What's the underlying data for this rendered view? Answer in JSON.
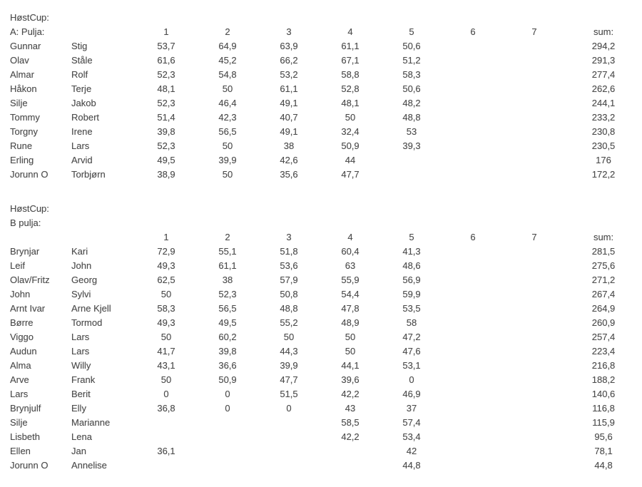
{
  "page": {
    "background": "#ffffff",
    "text_color": "#4c4c4c"
  },
  "sections": [
    {
      "title": "HøstCup:",
      "subtitle": "A: Pulja:",
      "subtitle_inline_with_header": true,
      "round_columns": [
        "1",
        "2",
        "3",
        "4",
        "5",
        "6",
        "7"
      ],
      "sum_label": "sum:",
      "rows": [
        {
          "name": "Gunnar",
          "partner": "Stig",
          "rounds": [
            "53,7",
            "64,9",
            "63,9",
            "61,1",
            "50,6",
            "",
            ""
          ],
          "sum": "294,2"
        },
        {
          "name": "Olav",
          "partner": "Ståle",
          "rounds": [
            "61,6",
            "45,2",
            "66,2",
            "67,1",
            "51,2",
            "",
            ""
          ],
          "sum": "291,3"
        },
        {
          "name": "Almar",
          "partner": "Rolf",
          "rounds": [
            "52,3",
            "54,8",
            "53,2",
            "58,8",
            "58,3",
            "",
            ""
          ],
          "sum": "277,4"
        },
        {
          "name": "Håkon",
          "partner": "Terje",
          "rounds": [
            "48,1",
            "50",
            "61,1",
            "52,8",
            "50,6",
            "",
            ""
          ],
          "sum": "262,6"
        },
        {
          "name": "Silje",
          "partner": "Jakob",
          "rounds": [
            "52,3",
            "46,4",
            "49,1",
            "48,1",
            "48,2",
            "",
            ""
          ],
          "sum": "244,1"
        },
        {
          "name": "Tommy",
          "partner": "Robert",
          "rounds": [
            "51,4",
            "42,3",
            "40,7",
            "50",
            "48,8",
            "",
            ""
          ],
          "sum": "233,2"
        },
        {
          "name": "Torgny",
          "partner": "Irene",
          "rounds": [
            "39,8",
            "56,5",
            "49,1",
            "32,4",
            "53",
            "",
            ""
          ],
          "sum": "230,8"
        },
        {
          "name": "Rune",
          "partner": "Lars",
          "rounds": [
            "52,3",
            "50",
            "38",
            "50,9",
            "39,3",
            "",
            ""
          ],
          "sum": "230,5"
        },
        {
          "name": "Erling",
          "partner": "Arvid",
          "rounds": [
            "49,5",
            "39,9",
            "42,6",
            "44",
            "",
            "",
            ""
          ],
          "sum": "176"
        },
        {
          "name": "Jorunn O",
          "partner": "Torbjørn",
          "rounds": [
            "38,9",
            "50",
            "35,6",
            "47,7",
            "",
            "",
            ""
          ],
          "sum": "172,2"
        }
      ]
    },
    {
      "title": "HøstCup:",
      "subtitle": "B pulja:",
      "subtitle_inline_with_header": false,
      "round_columns": [
        "1",
        "2",
        "3",
        "4",
        "5",
        "6",
        "7"
      ],
      "sum_label": "sum:",
      "rows": [
        {
          "name": "Brynjar",
          "partner": "Kari",
          "rounds": [
            "72,9",
            "55,1",
            "51,8",
            "60,4",
            "41,3",
            "",
            ""
          ],
          "sum": "281,5"
        },
        {
          "name": "Leif",
          "partner": "John",
          "rounds": [
            "49,3",
            "61,1",
            "53,6",
            "63",
            "48,6",
            "",
            ""
          ],
          "sum": "275,6"
        },
        {
          "name": "Olav/Fritz",
          "partner": "Georg",
          "rounds": [
            "62,5",
            "38",
            "57,9",
            "55,9",
            "56,9",
            "",
            ""
          ],
          "sum": "271,2"
        },
        {
          "name": "John",
          "partner": "Sylvi",
          "rounds": [
            "50",
            "52,3",
            "50,8",
            "54,4",
            "59,9",
            "",
            ""
          ],
          "sum": "267,4"
        },
        {
          "name": "Arnt Ivar",
          "partner": "Arne Kjell",
          "rounds": [
            "58,3",
            "56,5",
            "48,8",
            "47,8",
            "53,5",
            "",
            ""
          ],
          "sum": "264,9"
        },
        {
          "name": "Børre",
          "partner": "Tormod",
          "rounds": [
            "49,3",
            "49,5",
            "55,2",
            "48,9",
            "58",
            "",
            ""
          ],
          "sum": "260,9"
        },
        {
          "name": "Viggo",
          "partner": "Lars",
          "rounds": [
            "50",
            "60,2",
            "50",
            "50",
            "47,2",
            "",
            ""
          ],
          "sum": "257,4"
        },
        {
          "name": "Audun",
          "partner": "Lars",
          "rounds": [
            "41,7",
            "39,8",
            "44,3",
            "50",
            "47,6",
            "",
            ""
          ],
          "sum": "223,4"
        },
        {
          "name": "Alma",
          "partner": "Willy",
          "rounds": [
            "43,1",
            "36,6",
            "39,9",
            "44,1",
            "53,1",
            "",
            ""
          ],
          "sum": "216,8"
        },
        {
          "name": "Arve",
          "partner": "Frank",
          "rounds": [
            "50",
            "50,9",
            "47,7",
            "39,6",
            "0",
            "",
            ""
          ],
          "sum": "188,2"
        },
        {
          "name": "Lars",
          "partner": "Berit",
          "rounds": [
            "0",
            "0",
            "51,5",
            "42,2",
            "46,9",
            "",
            ""
          ],
          "sum": "140,6"
        },
        {
          "name": "Brynjulf",
          "partner": "Elly",
          "rounds": [
            "36,8",
            "0",
            "0",
            "43",
            "37",
            "",
            ""
          ],
          "sum": "116,8"
        },
        {
          "name": "Silje",
          "partner": "Marianne",
          "rounds": [
            "",
            "",
            "",
            "58,5",
            "57,4",
            "",
            ""
          ],
          "sum": "115,9"
        },
        {
          "name": "Lisbeth",
          "partner": "Lena",
          "rounds": [
            "",
            "",
            "",
            "42,2",
            "53,4",
            "",
            ""
          ],
          "sum": "95,6"
        },
        {
          "name": "Ellen",
          "partner": "Jan",
          "rounds": [
            "36,1",
            "",
            "",
            "",
            "42",
            "",
            ""
          ],
          "sum": "78,1"
        },
        {
          "name": "Jorunn O",
          "partner": "Annelise",
          "rounds": [
            "",
            "",
            "",
            "",
            "44,8",
            "",
            ""
          ],
          "sum": "44,8"
        }
      ]
    }
  ]
}
